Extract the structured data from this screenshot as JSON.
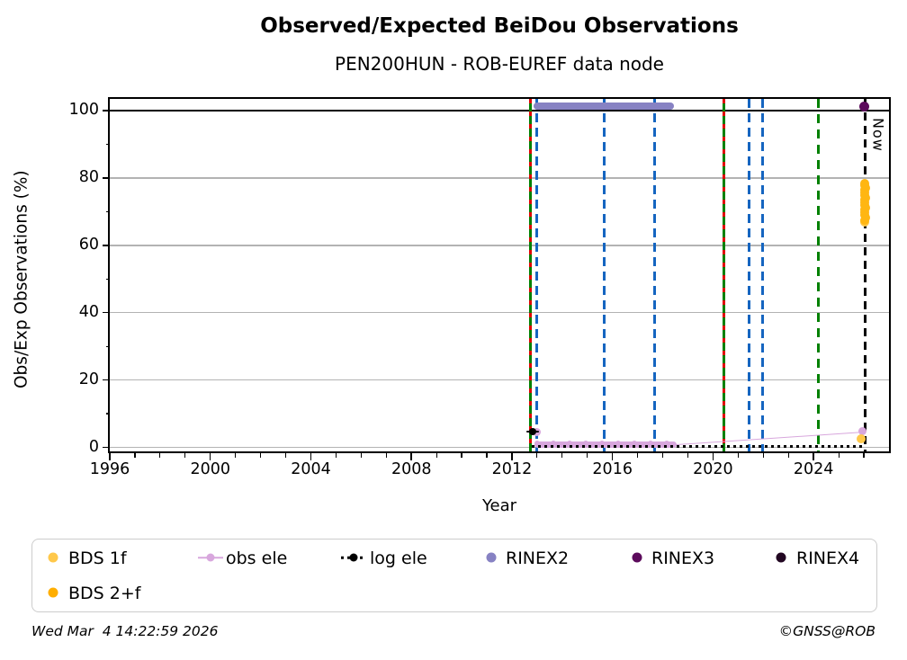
{
  "header": {
    "title": "Observed/Expected BeiDou Observations",
    "subtitle": "PEN200HUN - ROB-EUREF data node"
  },
  "footer": {
    "timestamp": "Wed Mar  4 14:22:59 2026",
    "copyright": "©GNSS@ROB"
  },
  "colors": {
    "grid": "#b3b3b3",
    "blue_event": "#1565c0",
    "green_event": "#008000",
    "red_event": "#e00000",
    "rinex2": "#8782c3",
    "rinex3": "#5c0b5c",
    "rinex4": "#220722",
    "obs_ele": "#d8a7dd",
    "log_ele": "#000000",
    "bds_1f": "#ffc84a",
    "bds_2f": "#ffb612"
  },
  "legend": {
    "items": [
      {
        "label": "BDS 1f",
        "marker": "dot",
        "color": "#ffc84a"
      },
      {
        "label": "BDS 2+f",
        "marker": "dot",
        "color": "#ffae00"
      },
      {
        "label": "obs ele",
        "marker": "line-dot",
        "color": "#d8a7dd"
      },
      {
        "label": "log ele",
        "marker": "dotted-line-dot",
        "color": "#000000"
      },
      {
        "label": "RINEX2",
        "marker": "dot",
        "color": "#8782c3"
      },
      {
        "label": "RINEX3",
        "marker": "dot",
        "color": "#5c0b5c"
      },
      {
        "label": "RINEX4",
        "marker": "dot",
        "color": "#220722"
      }
    ]
  },
  "chart_data": {
    "type": "scatter",
    "title": "Observed/Expected BeiDou Observations",
    "subtitle": "PEN200HUN - ROB-EUREF data node",
    "xlabel": "Year",
    "ylabel": "Obs/Exp Observations (%)",
    "xlim": [
      1996,
      2027
    ],
    "ylim": [
      -1.2,
      103.5
    ],
    "x_major_ticks": [
      1996,
      2000,
      2004,
      2008,
      2012,
      2016,
      2020,
      2024
    ],
    "x_minor_tick_step": 1,
    "y_major_ticks": [
      0,
      20,
      40,
      60,
      80,
      100
    ],
    "y_minor_ticks": [
      10,
      30,
      50,
      70,
      90
    ],
    "grid_y_values": [
      0,
      20,
      40,
      60,
      80
    ],
    "reference_line_y": 100,
    "now_line": {
      "year": 2026.05,
      "label": "Now"
    },
    "event_lines": [
      {
        "year": 2012.75,
        "style": "green-red-dashed"
      },
      {
        "year": 2012.97,
        "style": "blue-dashed"
      },
      {
        "year": 2015.68,
        "style": "blue-dashed"
      },
      {
        "year": 2017.69,
        "style": "blue-dashed"
      },
      {
        "year": 2020.44,
        "style": "green-red-dashed"
      },
      {
        "year": 2021.45,
        "style": "blue-dashed"
      },
      {
        "year": 2021.98,
        "style": "blue-dashed"
      },
      {
        "year": 2024.2,
        "style": "green-dashed"
      }
    ],
    "series": [
      {
        "name": "RINEX2",
        "color": "#8782c3",
        "type": "segment",
        "y": 101.3,
        "x0": 2012.87,
        "x1": 2018.45,
        "thickness_px": 8
      },
      {
        "name": "obs ele",
        "color": "#d8a7dd",
        "type": "composite",
        "band": {
          "x0": 2012.9,
          "x1": 2018.55,
          "y": 0.9,
          "thickness_px": 7
        },
        "line": [
          [
            2018.55,
            1.0
          ],
          [
            2025.96,
            4.7
          ]
        ],
        "points": [
          [
            2012.97,
            4.6
          ],
          [
            2025.96,
            4.7
          ]
        ],
        "r": 4.5
      },
      {
        "name": "log ele",
        "color": "#000000",
        "type": "dotted-line",
        "y": 0.25,
        "x0": 2012.78,
        "x1": 2026.0,
        "marker": [
          2012.82,
          4.6
        ]
      },
      {
        "name": "BDS 1f",
        "color": "#ffc84a",
        "type": "points",
        "r": 5,
        "points": [
          [
            2026.04,
            66.8
          ],
          [
            2025.88,
            2.6
          ]
        ]
      },
      {
        "name": "BDS 2+f",
        "color": "#ffb612",
        "type": "points",
        "r": 5,
        "points": [
          [
            2026.03,
            67.4
          ],
          [
            2026.06,
            68.3
          ],
          [
            2026.02,
            69.1
          ],
          [
            2026.05,
            69.9
          ],
          [
            2026.03,
            70.6
          ],
          [
            2026.06,
            71.3
          ],
          [
            2026.02,
            72.1
          ],
          [
            2026.05,
            72.8
          ],
          [
            2026.03,
            73.5
          ],
          [
            2026.06,
            74.2
          ],
          [
            2026.02,
            74.9
          ],
          [
            2026.05,
            75.7
          ],
          [
            2026.03,
            76.4
          ],
          [
            2026.06,
            77.1
          ],
          [
            2026.03,
            77.8
          ],
          [
            2026.05,
            78.5
          ]
        ]
      },
      {
        "name": "RINEX3",
        "color": "#5c0b5c",
        "type": "points",
        "r": 5.5,
        "points": [
          [
            2026.0,
            101.3
          ]
        ]
      }
    ]
  }
}
